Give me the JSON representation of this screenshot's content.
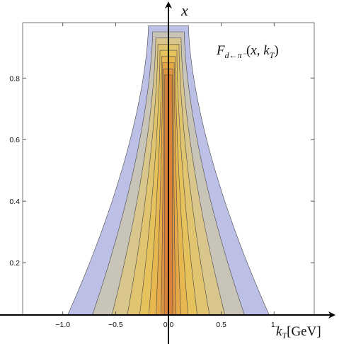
{
  "chart_data": {
    "type": "contour",
    "title": "F_{d←π⁻}(x, k_T)",
    "title_parts": {
      "main": "F",
      "sub": "d←π⁻",
      "args_open": "(",
      "arg1": "x",
      "comma": ", ",
      "arg2": "k",
      "arg2_sub": "T",
      "args_close": ")"
    },
    "xlabel": "k_T [GeV]",
    "xlabel_parts": {
      "var": "k",
      "sub": "T",
      "unit": "[GeV]"
    },
    "ylabel": "x",
    "xlim": [
      -1.38,
      1.38
    ],
    "ylim": [
      0.03,
      0.98
    ],
    "x_ticks": [
      -1.0,
      -0.5,
      0.0,
      0.5,
      1.0
    ],
    "x_tick_labels": [
      "−1.0",
      "−0.5",
      "0.0",
      "0.5",
      "1."
    ],
    "y_ticks": [
      0.2,
      0.4,
      0.6,
      0.8
    ],
    "y_tick_labels": [
      "0.2",
      "0.4",
      "0.6",
      "0.8"
    ],
    "levels": [
      {
        "color": "#bcc0e6",
        "width_bottom": 0.98,
        "width_top": 0.19,
        "top": 0.97
      },
      {
        "color": "#c9c4b8",
        "width_bottom": 0.74,
        "width_top": 0.15,
        "top": 0.95
      },
      {
        "color": "#d8c68c",
        "width_bottom": 0.55,
        "width_top": 0.12,
        "top": 0.93
      },
      {
        "color": "#e0c470",
        "width_bottom": 0.4,
        "width_top": 0.1,
        "top": 0.91
      },
      {
        "color": "#e6c25c",
        "width_bottom": 0.28,
        "width_top": 0.08,
        "top": 0.89
      },
      {
        "color": "#e8b850",
        "width_bottom": 0.19,
        "width_top": 0.065,
        "top": 0.87
      },
      {
        "color": "#e5a848",
        "width_bottom": 0.12,
        "width_top": 0.055,
        "top": 0.85
      },
      {
        "color": "#e09640",
        "width_bottom": 0.07,
        "width_top": 0.045,
        "top": 0.83
      },
      {
        "color": "#d9843a",
        "width_bottom": 0.04,
        "width_top": 0.035,
        "top": 0.81
      }
    ],
    "grid": false
  }
}
